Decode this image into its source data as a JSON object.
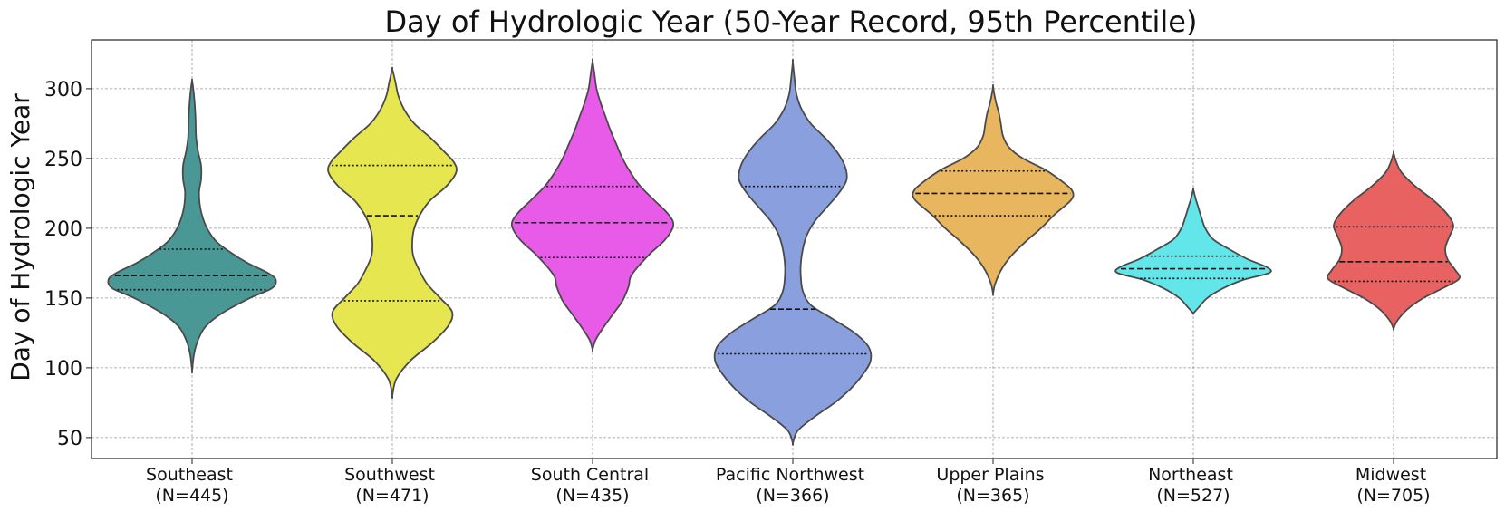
{
  "chart_data": {
    "type": "violin",
    "title": "Day of Hydrologic Year (50-Year Record, 95th Percentile)",
    "xlabel": "",
    "ylabel": "Day of Hydrologic Year",
    "ylim": [
      35,
      335
    ],
    "yticks": [
      50,
      100,
      150,
      200,
      250,
      300
    ],
    "grid": true,
    "categories": [
      {
        "name": "Southeast",
        "n_label": "(N=445)",
        "color": "#4a9895",
        "min": 98,
        "max": 306,
        "q1": 156,
        "median": 166,
        "q3": 185,
        "profile": [
          [
            98,
            0.0
          ],
          [
            110,
            0.02
          ],
          [
            120,
            0.06
          ],
          [
            130,
            0.14
          ],
          [
            140,
            0.32
          ],
          [
            150,
            0.58
          ],
          [
            157,
            0.8
          ],
          [
            163,
            0.84
          ],
          [
            168,
            0.76
          ],
          [
            175,
            0.56
          ],
          [
            182,
            0.4
          ],
          [
            190,
            0.25
          ],
          [
            200,
            0.15
          ],
          [
            212,
            0.09
          ],
          [
            225,
            0.07
          ],
          [
            235,
            0.09
          ],
          [
            245,
            0.09
          ],
          [
            255,
            0.06
          ],
          [
            265,
            0.04
          ],
          [
            278,
            0.035
          ],
          [
            290,
            0.025
          ],
          [
            300,
            0.012
          ],
          [
            306,
            0.0
          ]
        ]
      },
      {
        "name": "Southwest",
        "n_label": "(N=471)",
        "color": "#e6e650",
        "min": 80,
        "max": 314,
        "q1": 148,
        "median": 209,
        "q3": 245,
        "profile": [
          [
            80,
            0.0
          ],
          [
            92,
            0.04
          ],
          [
            105,
            0.18
          ],
          [
            118,
            0.4
          ],
          [
            130,
            0.56
          ],
          [
            140,
            0.6
          ],
          [
            150,
            0.48
          ],
          [
            160,
            0.35
          ],
          [
            170,
            0.27
          ],
          [
            180,
            0.21
          ],
          [
            190,
            0.2
          ],
          [
            200,
            0.22
          ],
          [
            210,
            0.28
          ],
          [
            220,
            0.38
          ],
          [
            230,
            0.54
          ],
          [
            240,
            0.64
          ],
          [
            247,
            0.62
          ],
          [
            255,
            0.52
          ],
          [
            265,
            0.38
          ],
          [
            275,
            0.22
          ],
          [
            285,
            0.12
          ],
          [
            295,
            0.06
          ],
          [
            305,
            0.03
          ],
          [
            314,
            0.0
          ]
        ]
      },
      {
        "name": "South Central",
        "n_label": "(N=435)",
        "color": "#e85ae8",
        "min": 113,
        "max": 320,
        "q1": 179,
        "median": 204,
        "q3": 230,
        "profile": [
          [
            113,
            0.0
          ],
          [
            120,
            0.03
          ],
          [
            128,
            0.1
          ],
          [
            138,
            0.2
          ],
          [
            148,
            0.3
          ],
          [
            158,
            0.36
          ],
          [
            165,
            0.38
          ],
          [
            172,
            0.45
          ],
          [
            182,
            0.58
          ],
          [
            192,
            0.73
          ],
          [
            202,
            0.81
          ],
          [
            210,
            0.76
          ],
          [
            220,
            0.62
          ],
          [
            230,
            0.48
          ],
          [
            240,
            0.38
          ],
          [
            250,
            0.3
          ],
          [
            260,
            0.24
          ],
          [
            270,
            0.18
          ],
          [
            280,
            0.13
          ],
          [
            290,
            0.08
          ],
          [
            300,
            0.04
          ],
          [
            310,
            0.02
          ],
          [
            320,
            0.0
          ]
        ]
      },
      {
        "name": "Pacific Northwest",
        "n_label": "(N=366)",
        "color": "#8a9fdd",
        "min": 46,
        "max": 319,
        "q1": 110,
        "median": 142,
        "q3": 230,
        "profile": [
          [
            46,
            0.0
          ],
          [
            55,
            0.05
          ],
          [
            65,
            0.22
          ],
          [
            75,
            0.42
          ],
          [
            85,
            0.58
          ],
          [
            95,
            0.7
          ],
          [
            105,
            0.78
          ],
          [
            115,
            0.76
          ],
          [
            125,
            0.62
          ],
          [
            135,
            0.4
          ],
          [
            145,
            0.18
          ],
          [
            155,
            0.1
          ],
          [
            165,
            0.08
          ],
          [
            175,
            0.08
          ],
          [
            185,
            0.1
          ],
          [
            195,
            0.14
          ],
          [
            205,
            0.22
          ],
          [
            215,
            0.34
          ],
          [
            225,
            0.46
          ],
          [
            235,
            0.54
          ],
          [
            245,
            0.52
          ],
          [
            255,
            0.44
          ],
          [
            265,
            0.32
          ],
          [
            275,
            0.18
          ],
          [
            285,
            0.09
          ],
          [
            295,
            0.04
          ],
          [
            305,
            0.02
          ],
          [
            319,
            0.0
          ]
        ]
      },
      {
        "name": "Upper Plains",
        "n_label": "(N=365)",
        "color": "#e9b660",
        "min": 153,
        "max": 302,
        "q1": 209,
        "median": 225,
        "q3": 241,
        "profile": [
          [
            153,
            0.0
          ],
          [
            160,
            0.02
          ],
          [
            170,
            0.08
          ],
          [
            180,
            0.18
          ],
          [
            190,
            0.32
          ],
          [
            200,
            0.48
          ],
          [
            210,
            0.62
          ],
          [
            220,
            0.78
          ],
          [
            226,
            0.8
          ],
          [
            232,
            0.72
          ],
          [
            242,
            0.52
          ],
          [
            250,
            0.3
          ],
          [
            258,
            0.16
          ],
          [
            266,
            0.1
          ],
          [
            274,
            0.08
          ],
          [
            282,
            0.06
          ],
          [
            290,
            0.03
          ],
          [
            297,
            0.01
          ],
          [
            302,
            0.0
          ]
        ]
      },
      {
        "name": "Northeast",
        "n_label": "(N=527)",
        "color": "#62e6e9",
        "min": 139,
        "max": 228,
        "q1": 164,
        "median": 171,
        "q3": 180,
        "profile": [
          [
            139,
            0.0
          ],
          [
            143,
            0.05
          ],
          [
            150,
            0.14
          ],
          [
            157,
            0.3
          ],
          [
            163,
            0.5
          ],
          [
            168,
            0.76
          ],
          [
            172,
            0.74
          ],
          [
            178,
            0.54
          ],
          [
            185,
            0.36
          ],
          [
            192,
            0.2
          ],
          [
            200,
            0.12
          ],
          [
            208,
            0.08
          ],
          [
            215,
            0.05
          ],
          [
            222,
            0.02
          ],
          [
            228,
            0.0
          ]
        ]
      },
      {
        "name": "Midwest",
        "n_label": "(N=705)",
        "color": "#e96262",
        "min": 128,
        "max": 254,
        "q1": 162,
        "median": 176,
        "q3": 201,
        "profile": [
          [
            128,
            0.0
          ],
          [
            134,
            0.04
          ],
          [
            142,
            0.14
          ],
          [
            150,
            0.3
          ],
          [
            158,
            0.52
          ],
          [
            164,
            0.66
          ],
          [
            170,
            0.62
          ],
          [
            178,
            0.54
          ],
          [
            186,
            0.52
          ],
          [
            194,
            0.56
          ],
          [
            202,
            0.6
          ],
          [
            210,
            0.54
          ],
          [
            220,
            0.4
          ],
          [
            230,
            0.22
          ],
          [
            240,
            0.08
          ],
          [
            247,
            0.03
          ],
          [
            254,
            0.0
          ]
        ]
      }
    ]
  }
}
